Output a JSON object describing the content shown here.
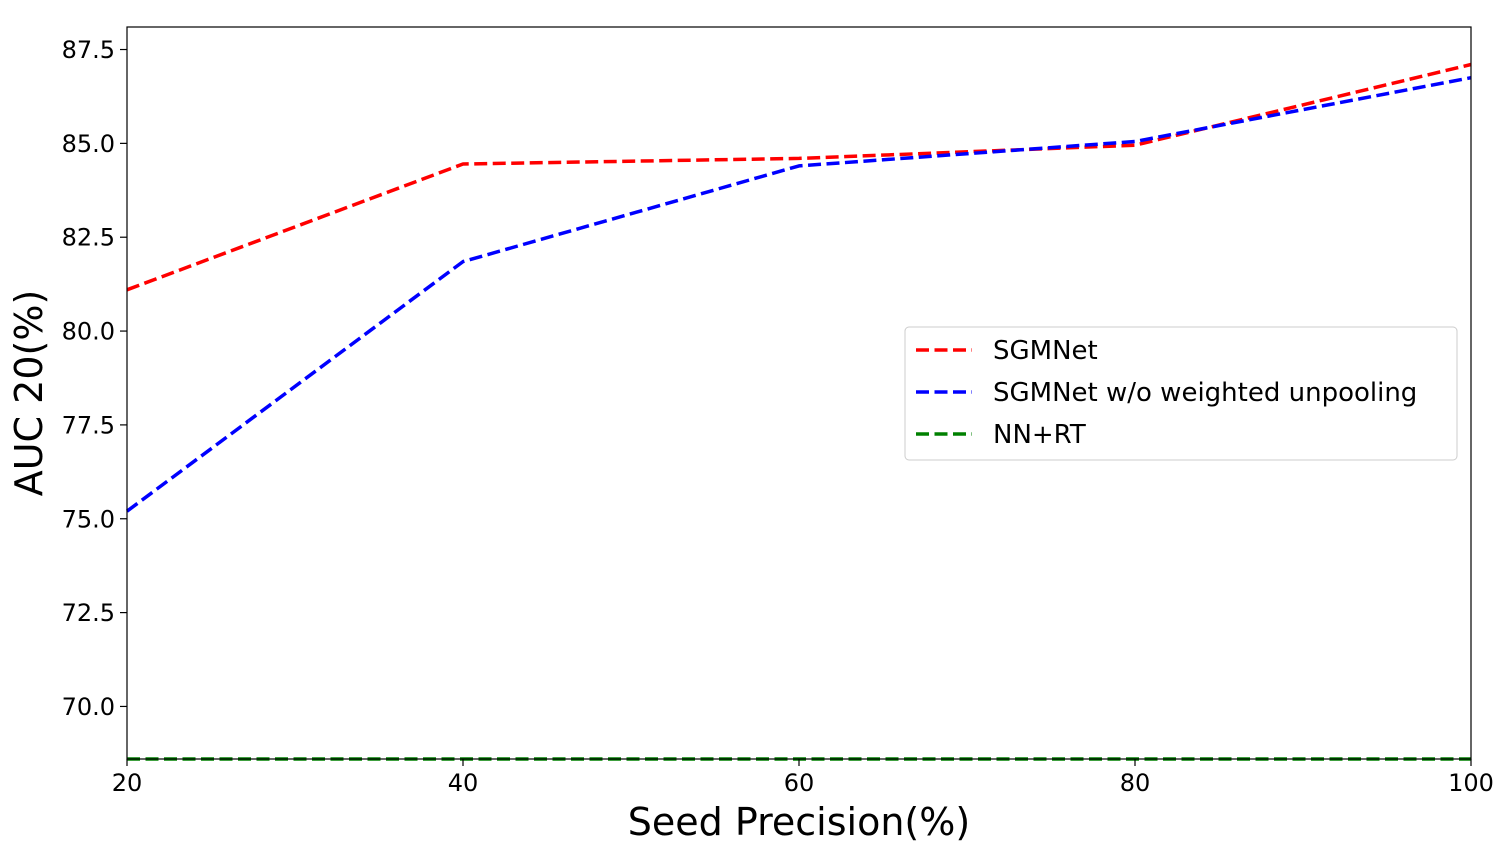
{
  "chart_data": {
    "type": "line",
    "title": "",
    "xlabel": "Seed Precision(%)",
    "ylabel": "AUC 20(%)",
    "xlim": [
      20,
      100
    ],
    "ylim": [
      68.6,
      88.1
    ],
    "xticks": [
      20,
      40,
      60,
      80,
      100
    ],
    "xtick_labels": [
      "20",
      "40",
      "60",
      "80",
      "100"
    ],
    "yticks": [
      70.0,
      72.5,
      75.0,
      77.5,
      80.0,
      82.5,
      85.0,
      87.5
    ],
    "ytick_labels": [
      "70.0",
      "72.5",
      "75.0",
      "77.5",
      "80.0",
      "82.5",
      "85.0",
      "87.5"
    ],
    "grid": false,
    "legend_position": "center-right",
    "series": [
      {
        "name": "SGMNet",
        "color": "#ff0000",
        "linestyle": "dashed",
        "x": [
          20,
          40,
          60,
          80,
          100
        ],
        "y": [
          81.1,
          84.45,
          84.6,
          84.95,
          87.1
        ]
      },
      {
        "name": "SGMNet w/o weighted unpooling",
        "color": "#0000ff",
        "linestyle": "dashed",
        "x": [
          20,
          40,
          60,
          80,
          100
        ],
        "y": [
          75.2,
          81.85,
          84.4,
          85.05,
          86.75
        ]
      },
      {
        "name": "NN+RT",
        "color": "#008000",
        "linestyle": "dashed",
        "x": [
          20,
          100
        ],
        "y": [
          68.6,
          68.6
        ]
      }
    ]
  }
}
